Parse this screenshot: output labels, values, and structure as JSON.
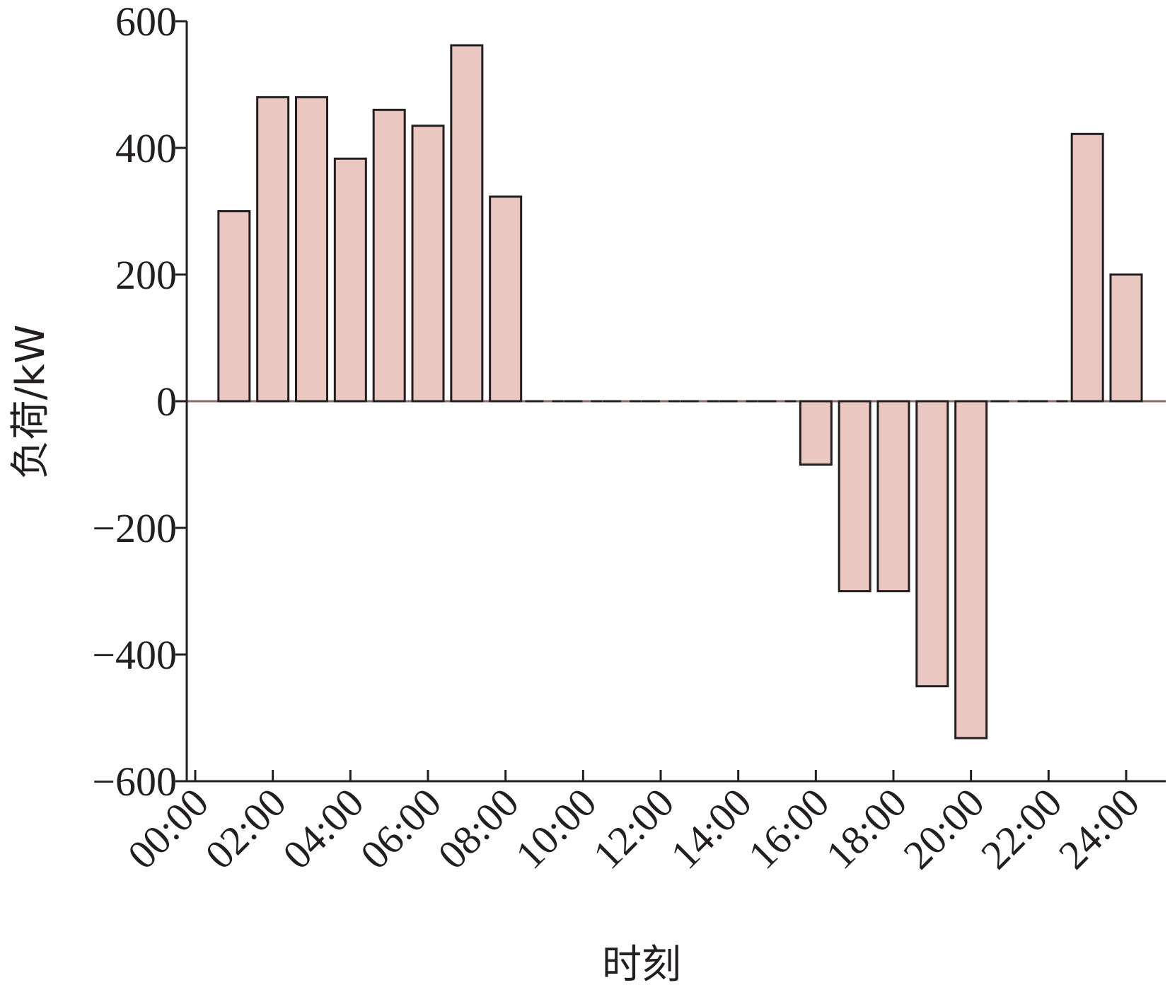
{
  "chart_data": {
    "type": "bar",
    "xlabel": "时刻",
    "ylabel": "负荷/kW",
    "ylim": [
      -600,
      600
    ],
    "yticks": [
      600,
      400,
      200,
      0,
      -200,
      -400,
      -600
    ],
    "ytick_labels": [
      "600",
      "400",
      "200",
      "0",
      "−200",
      "−400",
      "−600"
    ],
    "xlim_hours": [
      0,
      24
    ],
    "xticks": [
      "00:00",
      "02:00",
      "04:00",
      "06:00",
      "08:00",
      "10:00",
      "12:00",
      "14:00",
      "16:00",
      "18:00",
      "20:00",
      "22:00",
      "24:00"
    ],
    "bar_centers_hours": [
      1,
      2,
      3,
      4,
      5,
      6,
      7,
      8,
      9,
      10,
      11,
      12,
      13,
      14,
      15,
      16,
      17,
      18,
      19,
      20,
      21,
      22,
      23,
      24
    ],
    "values": [
      300,
      480,
      480,
      383,
      460,
      435,
      562,
      323,
      0,
      0,
      0,
      0,
      0,
      0,
      0,
      -100,
      -300,
      -300,
      -450,
      -532,
      0,
      0,
      422,
      200
    ],
    "colors": {
      "bar_fill": "#ebc7c2",
      "bar_edge": "#231f20",
      "axis": "#231f20",
      "zero_line": "#8c6b66"
    },
    "grid": false,
    "legend": "none"
  }
}
